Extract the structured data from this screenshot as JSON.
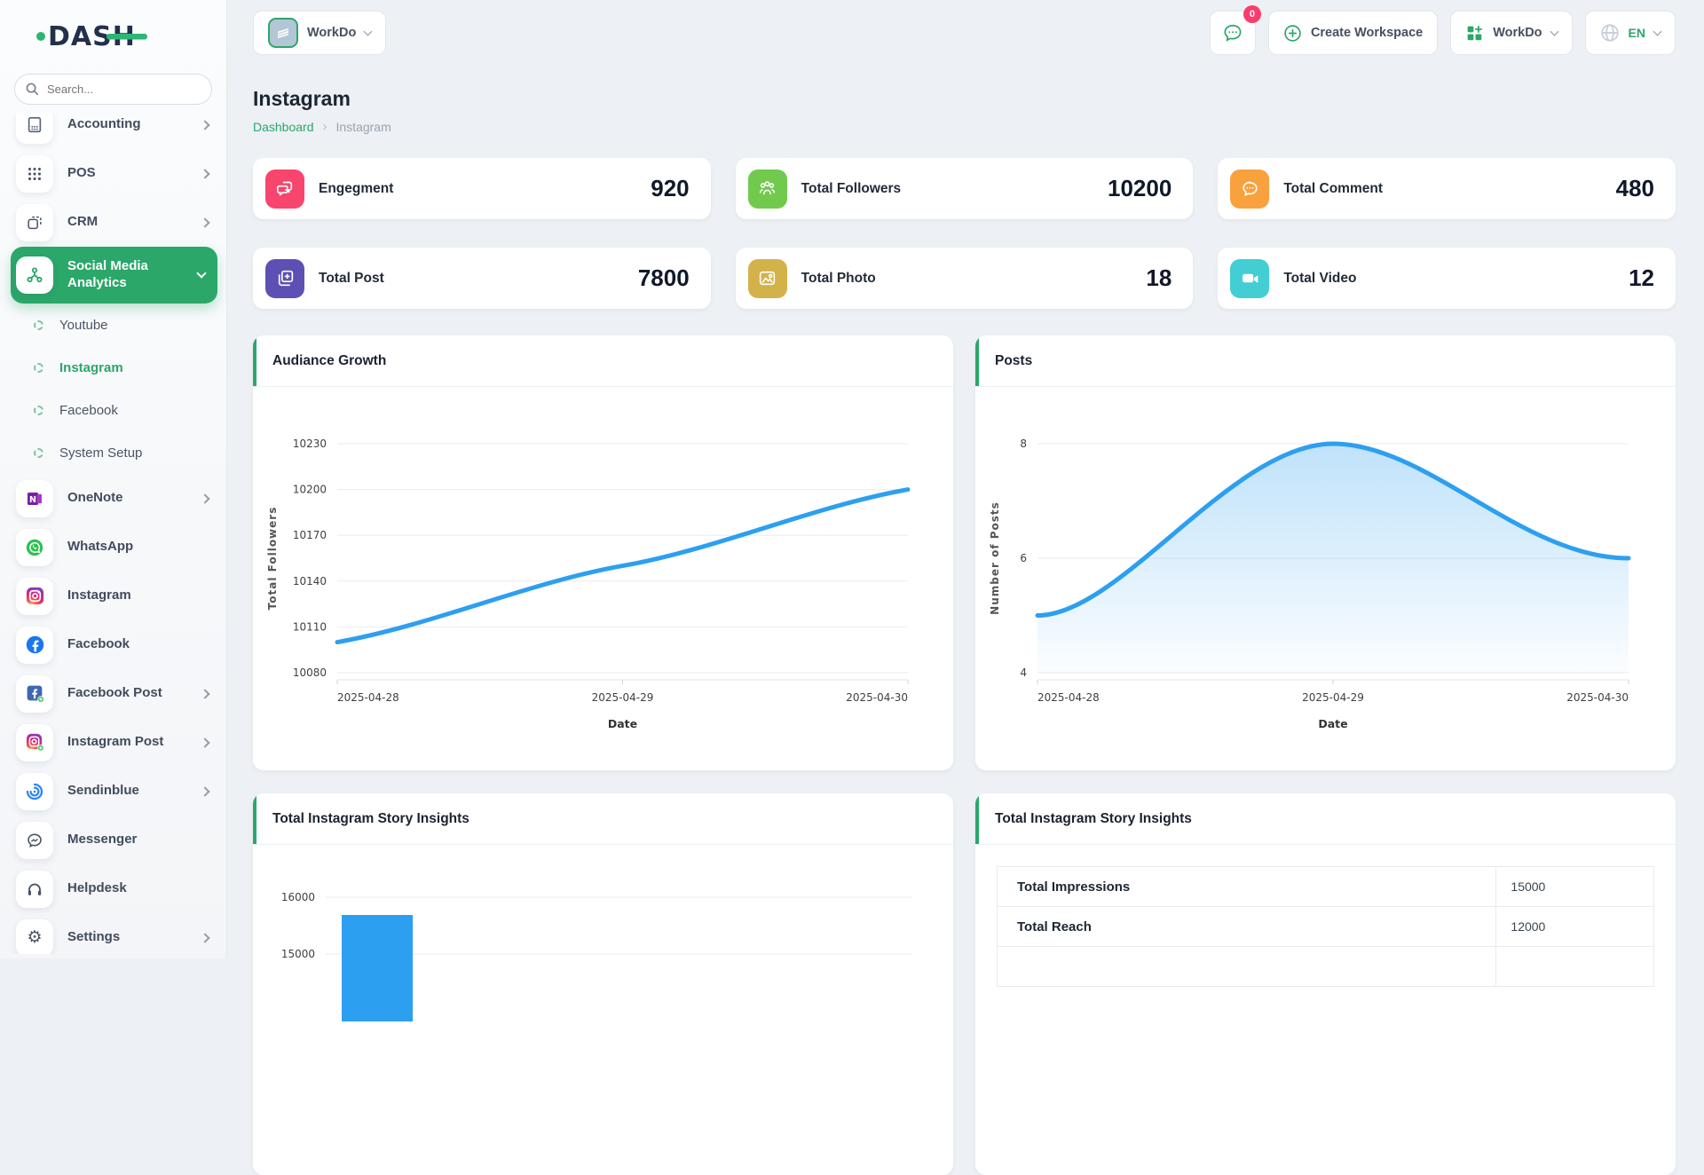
{
  "colors": {
    "accent": "#2ba76a",
    "chart_line": "#2d9ff0",
    "badge": "#fd3c6e"
  },
  "logo": {
    "text": "DASH"
  },
  "search": {
    "placeholder": "Search..."
  },
  "workspace_switcher": {
    "label": "WorkDo"
  },
  "header": {
    "chat_badge": "0",
    "create_workspace_label": "Create Workspace",
    "workspace_menu_label": "WorkDo",
    "language": "EN"
  },
  "page": {
    "title": "Instagram",
    "breadcrumb_home": "Dashboard",
    "breadcrumb_current": "Instagram"
  },
  "sidebar": [
    {
      "label": "Accounting",
      "icon": "accounting-icon",
      "chevron": "right",
      "clipped": true
    },
    {
      "label": "POS",
      "icon": "pos-icon",
      "chevron": "right"
    },
    {
      "label": "CRM",
      "icon": "crm-icon",
      "chevron": "right"
    },
    {
      "label": "Social Media Analytics",
      "icon": "share-nodes-icon",
      "chevron": "down",
      "active": true
    },
    {
      "label": "Youtube",
      "sub": true
    },
    {
      "label": "Instagram",
      "sub": true,
      "active": true
    },
    {
      "label": "Facebook",
      "sub": true
    },
    {
      "label": "System Setup",
      "sub": true
    },
    {
      "label": "OneNote",
      "icon": "onenote-icon",
      "chevron": "right"
    },
    {
      "label": "WhatsApp",
      "icon": "whatsapp-icon"
    },
    {
      "label": "Instagram",
      "icon": "instagram-icon"
    },
    {
      "label": "Facebook",
      "icon": "facebook-icon"
    },
    {
      "label": "Facebook Post",
      "icon": "facebook-post-icon",
      "chevron": "right"
    },
    {
      "label": "Instagram Post",
      "icon": "instagram-post-icon",
      "chevron": "right"
    },
    {
      "label": "Sendinblue",
      "icon": "sendinblue-icon",
      "chevron": "right"
    },
    {
      "label": "Messenger",
      "icon": "messenger-icon"
    },
    {
      "label": "Helpdesk",
      "icon": "helpdesk-icon"
    },
    {
      "label": "Settings",
      "icon": "settings-icon",
      "chevron": "right"
    }
  ],
  "stats": [
    {
      "label": "Engegment",
      "value": "920",
      "icon": "engagement-icon",
      "color": "#f8456d"
    },
    {
      "label": "Total Followers",
      "value": "10200",
      "icon": "followers-icon",
      "color": "#71ca4d"
    },
    {
      "label": "Total Comment",
      "value": "480",
      "icon": "comment-icon",
      "color": "#f9a13d"
    },
    {
      "label": "Total Post",
      "value": "7800",
      "icon": "post-icon",
      "color": "#5d50b4"
    },
    {
      "label": "Total Photo",
      "value": "18",
      "icon": "photo-icon",
      "color": "#d3b24a"
    },
    {
      "label": "Total Video",
      "value": "12",
      "icon": "video-icon",
      "color": "#42ced3"
    }
  ],
  "chart_data": [
    {
      "type": "line",
      "title": "Audiance Growth",
      "x": [
        "2025-04-28",
        "2025-04-29",
        "2025-04-30"
      ],
      "values": [
        10100,
        10150,
        10200
      ],
      "yticks": [
        10080,
        10110,
        10140,
        10170,
        10200,
        10230
      ],
      "ylim": [
        10080,
        10230
      ],
      "xlabel": "Date",
      "ylabel": "Total Followers",
      "color": "#2d9ff0",
      "grid": true,
      "legend": false
    },
    {
      "type": "area",
      "title": "Posts",
      "x": [
        "2025-04-28",
        "2025-04-29",
        "2025-04-30"
      ],
      "values": [
        5,
        8,
        6
      ],
      "yticks": [
        4,
        6,
        8
      ],
      "ylim": [
        4,
        8
      ],
      "xlabel": "Date",
      "ylabel": "Number of Posts",
      "color": "#2d9ff0",
      "grid": true,
      "legend": false
    },
    {
      "type": "bar",
      "title": "Total Instagram Story Insights",
      "categories": [
        "Total Impressions"
      ],
      "values": [
        15000
      ],
      "yticks": [
        16000,
        15000
      ],
      "color": "#2d9ff0",
      "clipped_by_viewport": true
    },
    {
      "type": "table",
      "title": "Total Instagram Story Insights",
      "rows": [
        [
          "Total Impressions",
          "15000"
        ],
        [
          "Total Reach",
          "12000"
        ]
      ]
    }
  ]
}
